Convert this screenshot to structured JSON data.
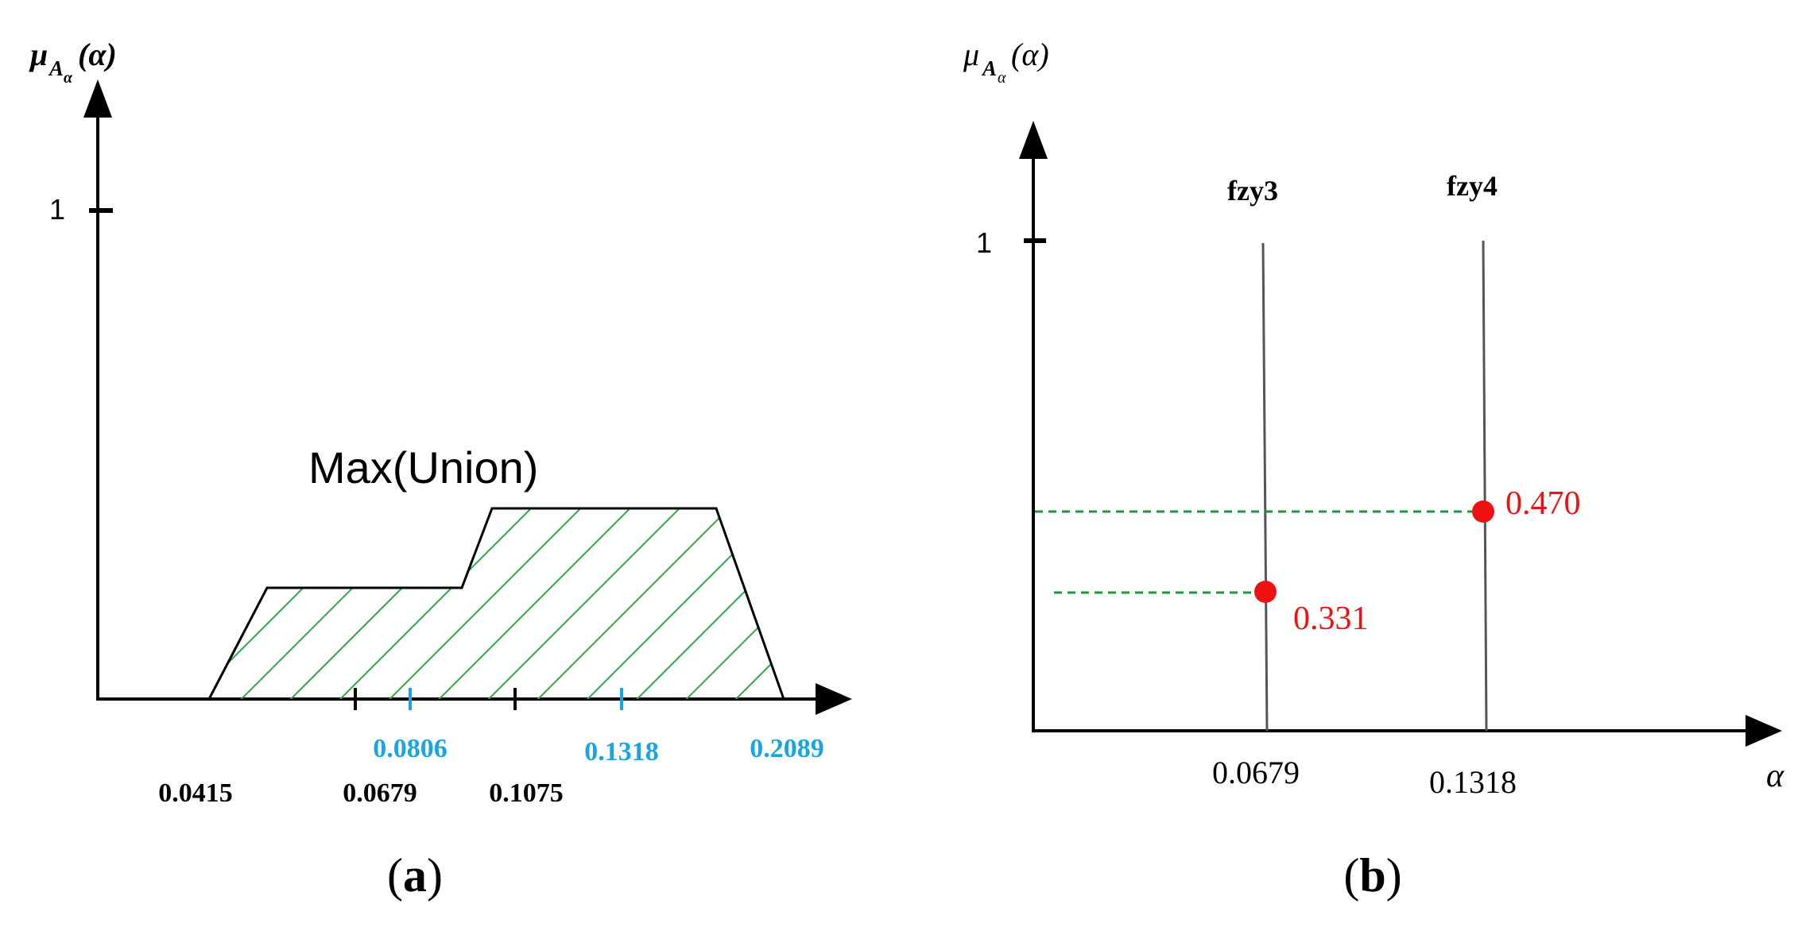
{
  "panel_a": {
    "y_label_main": "μ",
    "y_label_sub": "A",
    "y_label_subsub": "α",
    "y_label_arg": "(α)",
    "y_tick_1": "1",
    "shape_title": "Max(Union)",
    "ticks_black": [
      "0.0415",
      "0.0679",
      "0.1075"
    ],
    "ticks_blue": [
      "0.0806",
      "0.1318",
      "0.2089"
    ],
    "caption": "(a)"
  },
  "panel_b": {
    "y_label_main": "μ",
    "y_label_sub": "A",
    "y_label_subsub": "α",
    "y_label_arg": "(α)",
    "y_tick_1": "1",
    "x_label": "α",
    "series": [
      {
        "name": "fzy3",
        "x": "0.0679",
        "point_value": "0.331"
      },
      {
        "name": "fzy4",
        "x": "0.1318",
        "point_value": "0.470"
      }
    ],
    "caption": "(b)"
  },
  "colors": {
    "axis": "#000000",
    "hatch": "#2ea84a",
    "blue_tick": "#1ba5e0",
    "point": "#ee1111",
    "dashed": "#1a9a3a"
  }
}
